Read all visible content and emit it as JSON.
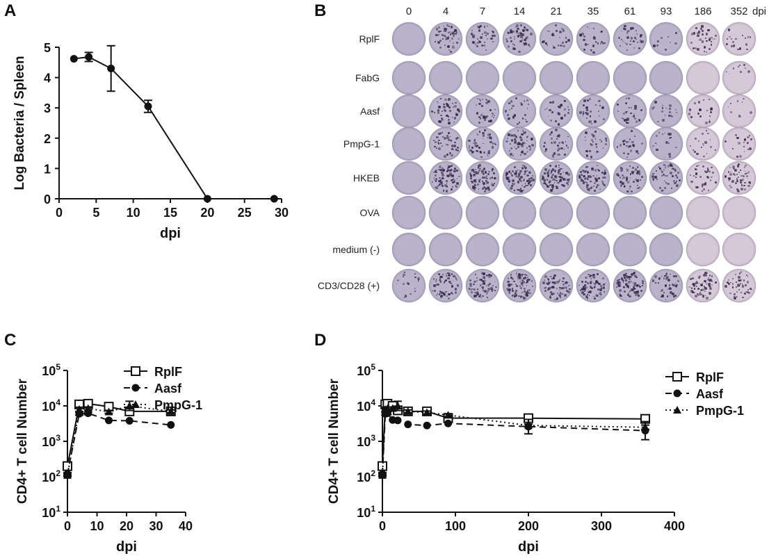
{
  "panels": {
    "a": "A",
    "b": "B",
    "c": "C",
    "d": "D"
  },
  "panel_b": {
    "columns": [
      "0",
      "4",
      "7",
      "14",
      "21",
      "35",
      "61",
      "93",
      "186",
      "352"
    ],
    "unit": "dpi",
    "rows": [
      "RplF",
      "FabG",
      "Aasf",
      "PmpG-1",
      "HKEB",
      "OVA",
      "medium (-)",
      "CD3/CD28 (+)"
    ],
    "spot_density": [
      [
        0,
        6,
        4,
        6,
        3,
        3,
        4,
        1,
        4,
        2
      ],
      [
        0,
        0,
        0,
        0,
        0,
        0,
        0,
        0,
        0,
        1
      ],
      [
        0,
        5,
        4,
        3,
        3,
        3,
        3,
        2,
        2,
        1
      ],
      [
        0,
        5,
        5,
        6,
        4,
        3,
        3,
        2,
        2,
        2
      ],
      [
        0,
        9,
        9,
        10,
        9,
        8,
        6,
        5,
        4,
        6
      ],
      [
        0,
        0,
        0,
        0,
        0,
        0,
        0,
        0,
        0,
        0
      ],
      [
        0,
        0,
        0,
        0,
        0,
        0,
        0,
        0,
        0,
        0
      ],
      [
        2,
        7,
        8,
        9,
        8,
        8,
        9,
        5,
        7,
        5
      ]
    ],
    "colors": {
      "well_base": "#b9b4cb",
      "well_late": "#d6c8d8",
      "spot": "#3a2a4a"
    }
  },
  "chart_data": [
    {
      "id": "A",
      "type": "line",
      "xlabel": "dpi",
      "ylabel": "Log Bacteria / Spleen",
      "xlim": [
        0,
        30
      ],
      "ylim": [
        0,
        5
      ],
      "xticks": [
        "0",
        "5",
        "10",
        "15",
        "20",
        "25",
        "30"
      ],
      "yticks": [
        "0",
        "1",
        "2",
        "3",
        "4",
        "5"
      ],
      "series": [
        {
          "x": [
            2,
            4,
            7,
            12,
            20,
            29
          ],
          "y": [
            4.62,
            4.68,
            4.3,
            3.05,
            0,
            0
          ],
          "err": [
            0,
            0.15,
            0.75,
            0.2,
            0,
            0
          ],
          "marker": "circle",
          "line": "solid"
        }
      ]
    },
    {
      "id": "C",
      "type": "line",
      "xlabel": "dpi",
      "ylabel": "CD4+ T cell Number",
      "yscale": "log",
      "xlim": [
        0,
        40
      ],
      "ylim": [
        10,
        100000
      ],
      "xticks": [
        "0",
        "10",
        "20",
        "30",
        "40"
      ],
      "ytick_base": "10",
      "ytick_exponents": [
        "1",
        "2",
        "3",
        "4",
        "5"
      ],
      "series": [
        {
          "name": "RplF",
          "x": [
            0,
            4,
            7,
            14,
            21,
            35
          ],
          "y": [
            200,
            11000,
            11500,
            9500,
            7000,
            7000
          ],
          "err_factor": [
            1.15,
            1.1,
            1.1,
            1.1,
            1.15,
            1.1
          ],
          "marker": "square-open",
          "line": "solid"
        },
        {
          "name": "Aasf",
          "x": [
            0,
            4,
            7,
            14,
            21,
            35
          ],
          "y": [
            120,
            6000,
            6200,
            3900,
            3800,
            2900
          ],
          "err_factor": [
            1.1,
            1.1,
            1.1,
            1.05,
            1.05,
            1.05
          ],
          "marker": "circle",
          "line": "dashed"
        },
        {
          "name": "PmpG-1",
          "x": [
            0,
            4,
            7,
            14,
            21,
            35
          ],
          "y": [
            110,
            8000,
            8500,
            6800,
            10000,
            7000
          ],
          "err_factor": [
            1.1,
            1.15,
            1.1,
            1.1,
            1.35,
            1.1
          ],
          "marker": "triangle",
          "line": "dotted"
        }
      ]
    },
    {
      "id": "D",
      "type": "line",
      "xlabel": "dpi",
      "ylabel": "CD4+ T cell Number",
      "yscale": "log",
      "xlim": [
        0,
        400
      ],
      "ylim": [
        10,
        100000
      ],
      "xticks": [
        "0",
        "100",
        "200",
        "300",
        "400"
      ],
      "ytick_base": "10",
      "ytick_exponents": [
        "1",
        "2",
        "3",
        "4",
        "5"
      ],
      "series": [
        {
          "name": "RplF",
          "x": [
            0,
            4,
            7,
            14,
            21,
            35,
            61,
            90,
            200,
            360
          ],
          "y": [
            200,
            11000,
            11500,
            10000,
            7500,
            7000,
            7000,
            4500,
            4500,
            4300
          ],
          "err_factor": [
            1.1,
            1.1,
            1.1,
            1.1,
            1.1,
            1.1,
            1.1,
            1.1,
            1.1,
            1.1
          ],
          "marker": "square-open",
          "line": "solid"
        },
        {
          "name": "Aasf",
          "x": [
            0,
            4,
            7,
            14,
            21,
            35,
            61,
            90,
            200,
            360
          ],
          "y": [
            120,
            6000,
            6200,
            4000,
            3900,
            3000,
            2800,
            3200,
            2600,
            2000
          ],
          "err_factor": [
            1.1,
            1.1,
            1.1,
            1.05,
            1.05,
            1.05,
            1.05,
            1.05,
            1.6,
            1.8
          ],
          "marker": "circle",
          "line": "dashed"
        },
        {
          "name": "PmpG-1",
          "x": [
            0,
            4,
            7,
            14,
            21,
            35,
            61,
            90,
            200,
            360
          ],
          "y": [
            110,
            8000,
            8500,
            8500,
            10000,
            7000,
            6500,
            5500,
            2800,
            2500
          ],
          "err_factor": [
            1.1,
            1.15,
            1.1,
            1.1,
            1.35,
            1.1,
            1.1,
            1.1,
            1.1,
            1.15
          ],
          "marker": "triangle",
          "line": "dotted"
        }
      ]
    }
  ]
}
